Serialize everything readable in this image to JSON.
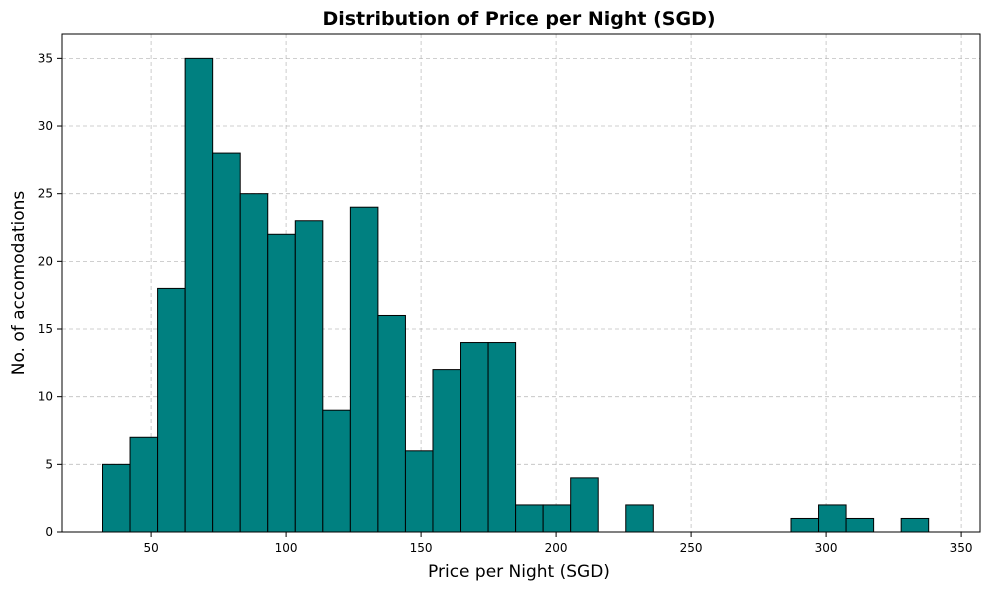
{
  "chart_data": {
    "type": "bar",
    "title": "Distribution of Price per Night (SGD)",
    "xlabel": "Price per Night (SGD)",
    "ylabel": "No. of accomodations",
    "xlim": [
      17,
      357
    ],
    "ylim": [
      0,
      36.8
    ],
    "xticks": [
      50,
      100,
      150,
      200,
      250,
      300,
      350
    ],
    "yticks": [
      0,
      5,
      10,
      15,
      20,
      25,
      30,
      35
    ],
    "bin_width": 10.2,
    "bins": [
      {
        "x0": 32.0,
        "value": 5
      },
      {
        "x0": 42.2,
        "value": 7
      },
      {
        "x0": 52.4,
        "value": 18
      },
      {
        "x0": 62.6,
        "value": 35
      },
      {
        "x0": 72.8,
        "value": 28
      },
      {
        "x0": 83.0,
        "value": 25
      },
      {
        "x0": 93.2,
        "value": 22
      },
      {
        "x0": 103.4,
        "value": 23
      },
      {
        "x0": 113.6,
        "value": 9
      },
      {
        "x0": 123.8,
        "value": 24
      },
      {
        "x0": 134.0,
        "value": 16
      },
      {
        "x0": 144.2,
        "value": 6
      },
      {
        "x0": 154.4,
        "value": 12
      },
      {
        "x0": 164.6,
        "value": 14
      },
      {
        "x0": 174.8,
        "value": 14
      },
      {
        "x0": 185.0,
        "value": 2
      },
      {
        "x0": 195.2,
        "value": 2
      },
      {
        "x0": 205.4,
        "value": 4
      },
      {
        "x0": 215.6,
        "value": 0
      },
      {
        "x0": 225.8,
        "value": 2
      },
      {
        "x0": 236.0,
        "value": 0
      },
      {
        "x0": 246.2,
        "value": 0
      },
      {
        "x0": 256.4,
        "value": 0
      },
      {
        "x0": 266.6,
        "value": 0
      },
      {
        "x0": 276.8,
        "value": 0
      },
      {
        "x0": 287.0,
        "value": 1
      },
      {
        "x0": 297.2,
        "value": 2
      },
      {
        "x0": 307.4,
        "value": 1
      },
      {
        "x0": 317.6,
        "value": 0
      },
      {
        "x0": 327.8,
        "value": 1
      }
    ],
    "grid": true,
    "colors": {
      "bar_fill": "#008080",
      "bar_edge": "#000000",
      "grid": "#b0b0b0"
    }
  }
}
